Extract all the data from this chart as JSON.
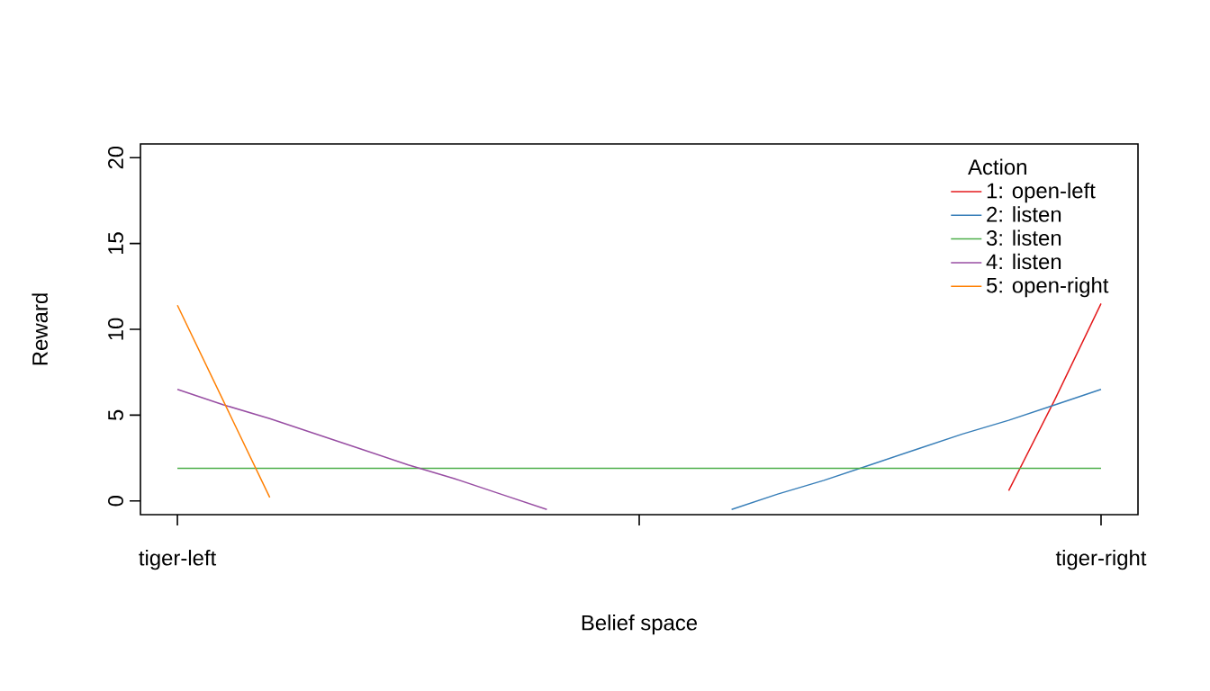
{
  "chart_data": {
    "type": "line",
    "xlabel": "Belief space",
    "ylabel": "Reward",
    "legend_title": "Action",
    "legend": "top right",
    "categories": [
      "tiger-left",
      null,
      null,
      null,
      null,
      null,
      null,
      null,
      null,
      null,
      null,
      null,
      null,
      null,
      null,
      null,
      null,
      null,
      null,
      null,
      "tiger-right"
    ],
    "ylim": [
      -0.8,
      20.8
    ],
    "yticks": [
      0,
      5,
      10,
      15,
      20
    ],
    "series": [
      {
        "name": "1: open-left",
        "color": "#e41a1c",
        "values": [
          null,
          null,
          null,
          null,
          null,
          null,
          null,
          null,
          null,
          null,
          null,
          null,
          null,
          null,
          null,
          null,
          null,
          null,
          0.6,
          5.9,
          11.5
        ]
      },
      {
        "name": "2: listen",
        "color": "#377eb8",
        "values": [
          null,
          null,
          null,
          null,
          null,
          null,
          null,
          null,
          null,
          null,
          null,
          null,
          -0.5,
          0.4,
          1.2,
          2.1,
          3.0,
          3.9,
          4.7,
          5.6,
          6.5
        ]
      },
      {
        "name": "3: listen",
        "color": "#4daf4a",
        "values": [
          1.9,
          1.9,
          1.9,
          1.9,
          1.9,
          1.9,
          1.9,
          1.9,
          1.9,
          1.9,
          1.9,
          1.9,
          1.9,
          1.9,
          1.9,
          1.9,
          1.9,
          1.9,
          1.9,
          1.9,
          1.9
        ]
      },
      {
        "name": "4: listen",
        "color": "#984ea3",
        "values": [
          6.5,
          5.6,
          4.8,
          3.9,
          3.0,
          2.1,
          1.3,
          0.4,
          -0.5,
          null,
          null,
          null,
          null,
          null,
          null,
          null,
          null,
          null,
          null,
          null,
          null
        ]
      },
      {
        "name": "5: open-right",
        "color": "#ff7f00",
        "values": [
          11.4,
          5.8,
          0.2,
          null,
          null,
          null,
          null,
          null,
          null,
          null,
          null,
          null,
          null,
          null,
          null,
          null,
          null,
          null,
          null,
          null,
          null
        ]
      }
    ]
  }
}
